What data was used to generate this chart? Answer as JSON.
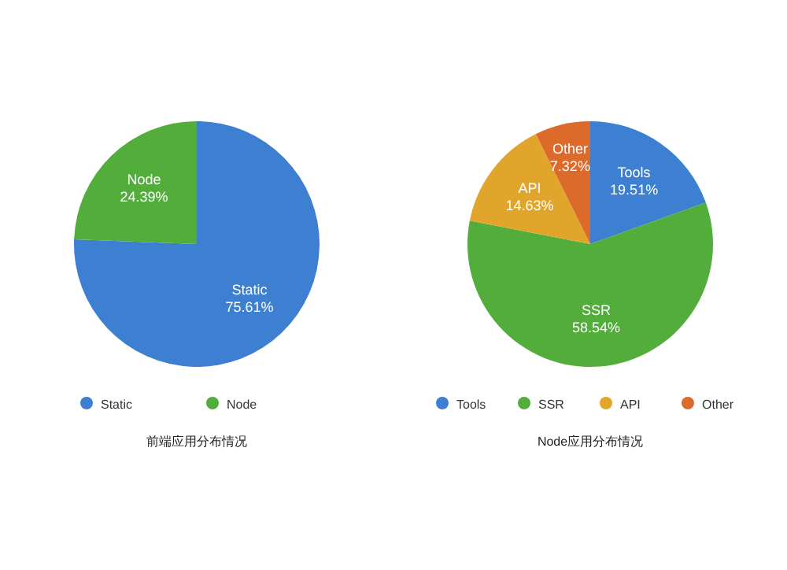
{
  "chart_data": [
    {
      "type": "pie",
      "title": "前端应用分布情况",
      "categories": [
        "Static",
        "Node"
      ],
      "values": [
        75.61,
        24.39
      ],
      "value_labels": [
        "75.61%",
        "24.39%"
      ],
      "colors": [
        "#3d7fd0",
        "#52ad3a"
      ],
      "legend": "bottom"
    },
    {
      "type": "pie",
      "title": "Node应用分布情况",
      "categories": [
        "Tools",
        "SSR",
        "API",
        "Other"
      ],
      "values": [
        19.51,
        58.54,
        14.63,
        7.32
      ],
      "value_labels": [
        "19.51%",
        "58.54%",
        "14.63%",
        "7.32%"
      ],
      "colors": [
        "#3d7fd0",
        "#52ad3a",
        "#e2a52c",
        "#dc6a2b"
      ],
      "legend": "bottom"
    }
  ]
}
